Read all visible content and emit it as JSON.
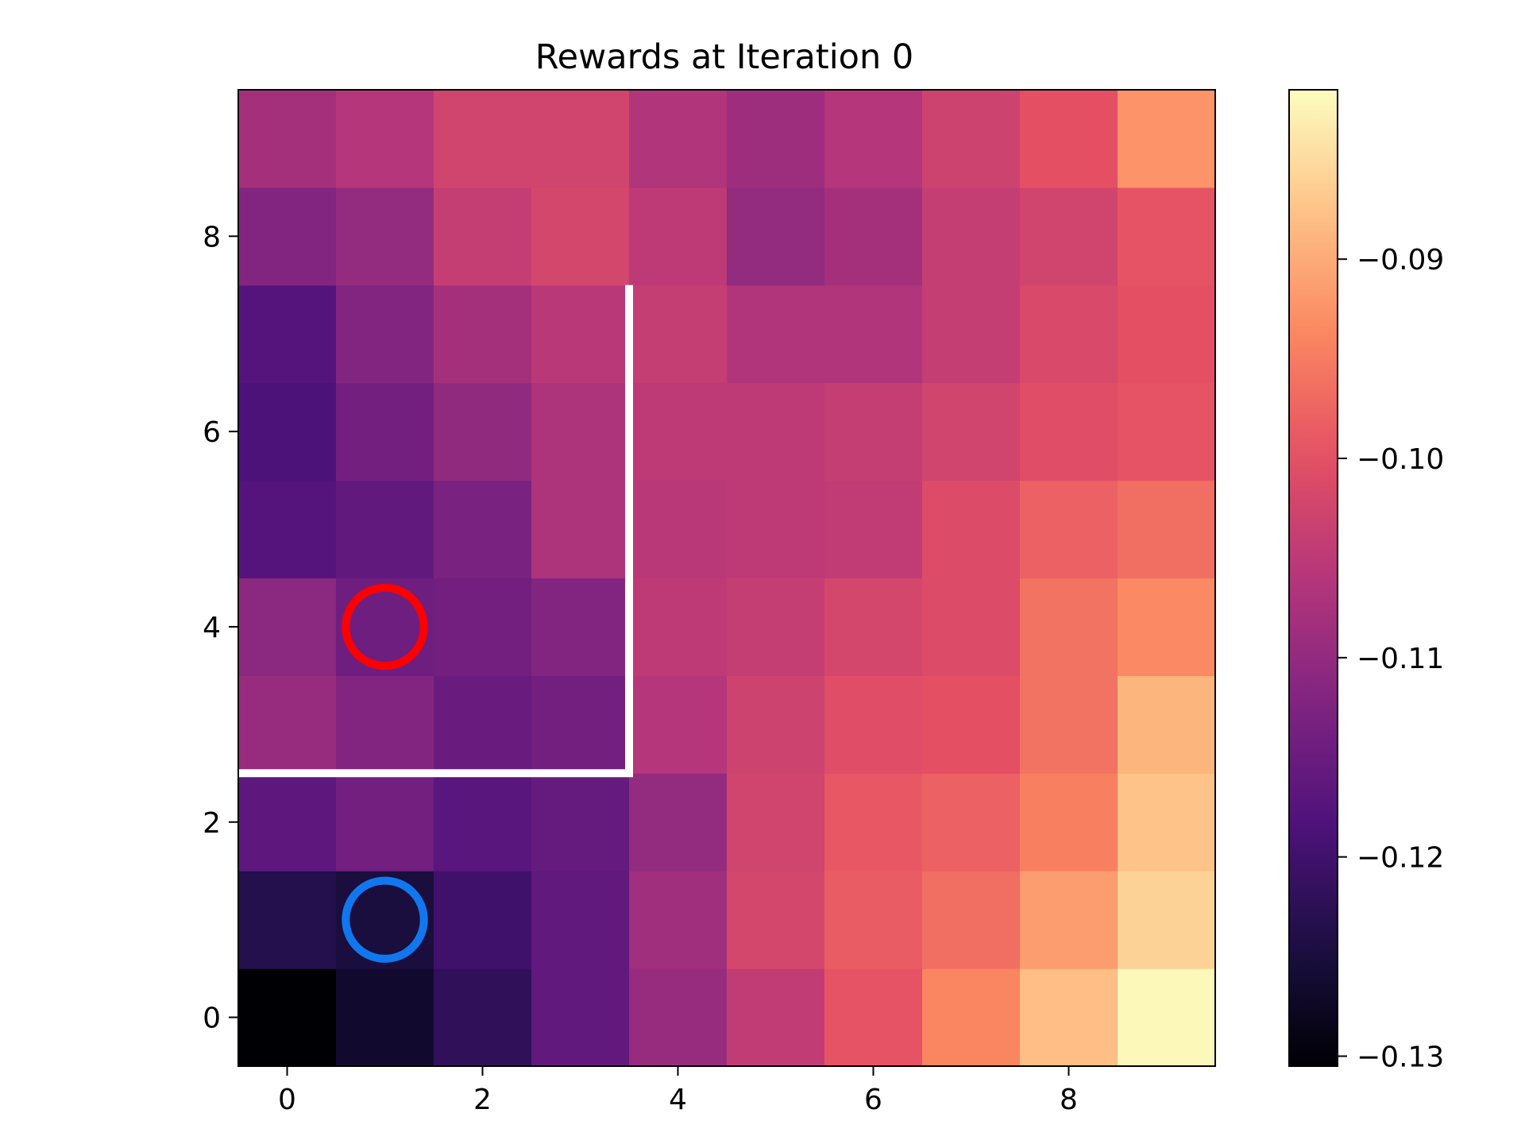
{
  "chart_data": {
    "type": "heatmap",
    "title": "Rewards at Iteration 0",
    "xlabel": "",
    "ylabel": "",
    "colormap": "magma",
    "vmin": -0.1305,
    "vmax": -0.0815,
    "x_ticks": [
      "0",
      "2",
      "4",
      "6",
      "8"
    ],
    "y_ticks": [
      "0",
      "2",
      "4",
      "6",
      "8"
    ],
    "x_tick_values": [
      0,
      2,
      4,
      6,
      8
    ],
    "y_tick_values": [
      0,
      2,
      4,
      6,
      8
    ],
    "xlim": [
      -0.5,
      9.5
    ],
    "ylim": [
      -0.5,
      9.5
    ],
    "colorbar_ticks": [
      "−0.09",
      "−0.10",
      "−0.11",
      "−0.12",
      "−0.13"
    ],
    "colorbar_tick_values": [
      -0.09,
      -0.1,
      -0.11,
      -0.12,
      -0.13
    ],
    "grid": false,
    "rows_bottom_to_top": [
      [
        -0.1305,
        -0.1265,
        -0.122,
        -0.116,
        -0.1095,
        -0.1045,
        -0.0995,
        -0.094,
        -0.088,
        -0.082
      ],
      [
        -0.1235,
        -0.125,
        -0.12,
        -0.116,
        -0.1085,
        -0.102,
        -0.0985,
        -0.0965,
        -0.0915,
        -0.086
      ],
      [
        -0.1165,
        -0.114,
        -0.117,
        -0.1155,
        -0.11,
        -0.1025,
        -0.099,
        -0.098,
        -0.0945,
        -0.0875
      ],
      [
        -0.1095,
        -0.112,
        -0.115,
        -0.114,
        -0.106,
        -0.103,
        -0.1005,
        -0.1,
        -0.096,
        -0.089
      ],
      [
        -0.111,
        -0.1145,
        -0.114,
        -0.112,
        -0.105,
        -0.104,
        -0.102,
        -0.101,
        -0.096,
        -0.0935
      ],
      [
        -0.1175,
        -0.116,
        -0.113,
        -0.107,
        -0.1055,
        -0.105,
        -0.1045,
        -0.101,
        -0.098,
        -0.0965
      ],
      [
        -0.1185,
        -0.114,
        -0.1105,
        -0.107,
        -0.105,
        -0.105,
        -0.104,
        -0.1025,
        -0.1005,
        -0.0995
      ],
      [
        -0.1175,
        -0.112,
        -0.108,
        -0.1055,
        -0.104,
        -0.1065,
        -0.1065,
        -0.104,
        -0.1015,
        -0.1
      ],
      [
        -0.112,
        -0.11,
        -0.104,
        -0.102,
        -0.105,
        -0.11,
        -0.108,
        -0.104,
        -0.1025,
        -0.0995
      ],
      [
        -0.108,
        -0.106,
        -0.1025,
        -0.1025,
        -0.1065,
        -0.109,
        -0.106,
        -0.103,
        -0.1,
        -0.0925
      ]
    ],
    "markers": [
      {
        "name": "agent",
        "x": 1,
        "y": 4,
        "color": "#ff0000"
      },
      {
        "name": "start",
        "x": 1,
        "y": 1,
        "color": "#1177ee"
      }
    ],
    "wall": {
      "color": "#ffffff",
      "points": [
        [
          -0.5,
          2.5
        ],
        [
          3.5,
          2.5
        ],
        [
          3.5,
          7.5
        ]
      ]
    }
  }
}
